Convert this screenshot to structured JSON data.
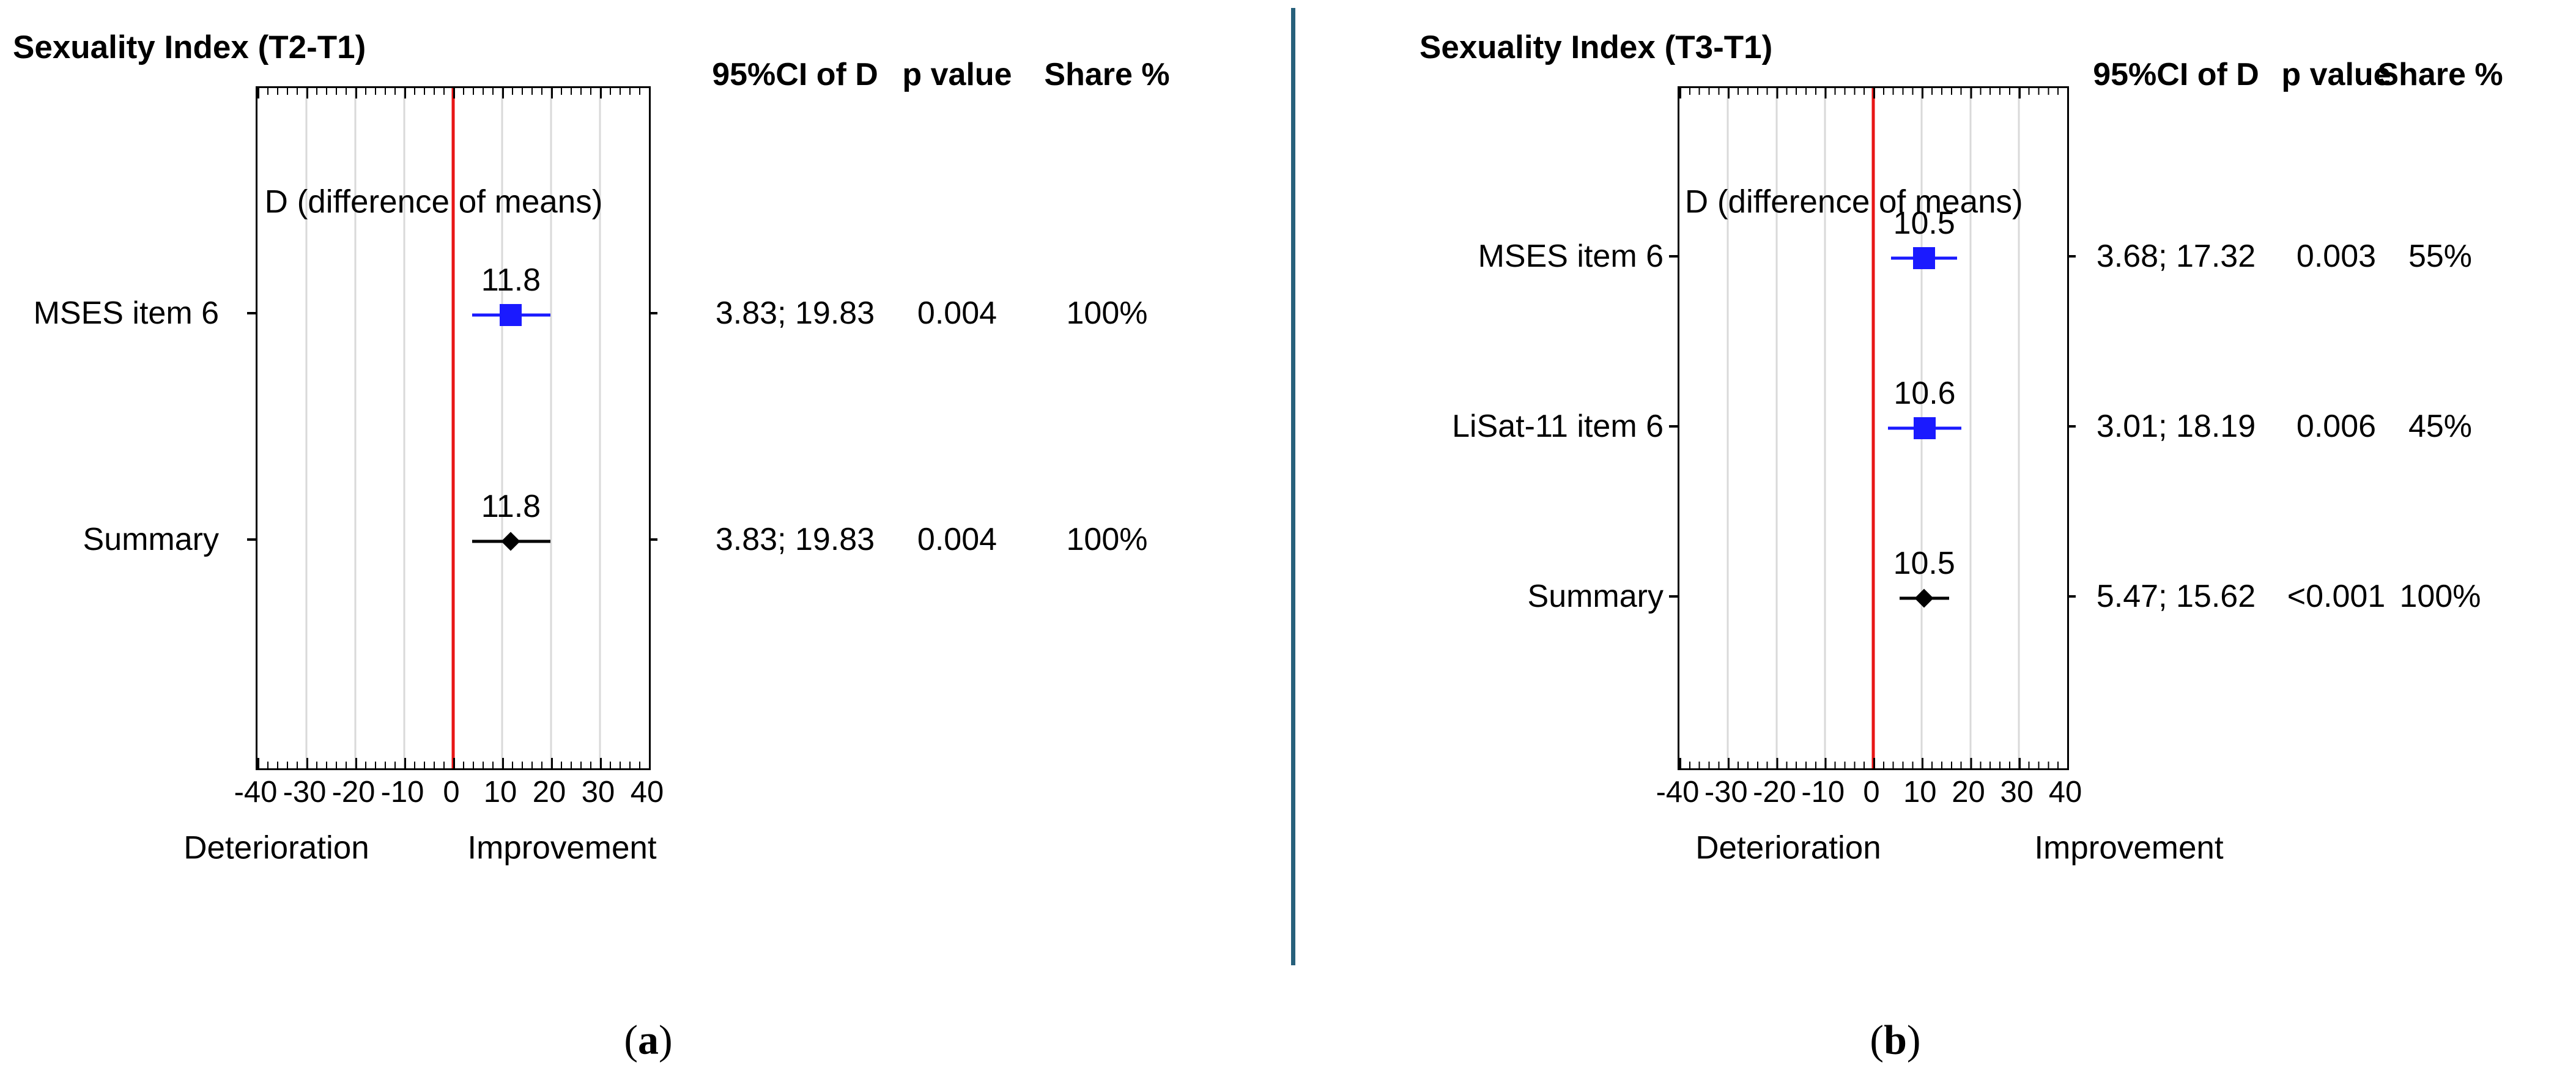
{
  "figure": {
    "divider_color": "#27607b",
    "background_color": "#ffffff",
    "caption_open": "(",
    "caption_close": ")",
    "caption_a": "a",
    "caption_b": "b"
  },
  "chart_data": [
    {
      "type": "forest",
      "panel": "a",
      "title": "Sexuality Index (T2-T1)",
      "inner_axis_label": "D (difference of means)",
      "xlim": [
        -40,
        40
      ],
      "xticks": [
        -40,
        -30,
        -20,
        -10,
        0,
        10,
        20,
        30,
        40
      ],
      "xtick_labels": [
        "-40",
        "-30",
        "-20",
        "-10",
        "0",
        "10",
        "20",
        "30",
        "40"
      ],
      "zero_line_value": 0,
      "zero_line_color": "#e81515",
      "gridline_color": "#d9d9d9",
      "grid_on": true,
      "direction_label_negative": "Deterioration",
      "direction_label_positive": "Improvement",
      "columns": [
        "95%CI of D",
        "p value",
        "Share %"
      ],
      "rows": [
        {
          "label": "MSES item 6",
          "d": 11.8,
          "d_text": "11.8",
          "ci": [
            3.83,
            19.83
          ],
          "ci_text": "3.83; 19.83",
          "p_value": "0.004",
          "share": "100%",
          "marker": "square",
          "marker_color": "#1a1aff"
        },
        {
          "label": "Summary",
          "d": 11.8,
          "d_text": "11.8",
          "ci": [
            3.83,
            19.83
          ],
          "ci_text": "3.83; 19.83",
          "p_value": "0.004",
          "share": "100%",
          "marker": "diamond",
          "marker_color": "#000000"
        }
      ]
    },
    {
      "type": "forest",
      "panel": "b",
      "title": "Sexuality Index (T3-T1)",
      "inner_axis_label": "D (difference of means)",
      "xlim": [
        -40,
        40
      ],
      "xticks": [
        -40,
        -30,
        -20,
        -10,
        0,
        10,
        20,
        30,
        40
      ],
      "xtick_labels": [
        "-40",
        "-30",
        "-20",
        "-10",
        "0",
        "10",
        "20",
        "30",
        "40"
      ],
      "zero_line_value": 0,
      "zero_line_color": "#e81515",
      "gridline_color": "#d9d9d9",
      "grid_on": true,
      "direction_label_negative": "Deterioration",
      "direction_label_positive": "Improvement",
      "columns": [
        "95%CI of D",
        "p value",
        "Share %"
      ],
      "rows": [
        {
          "label": "MSES item 6",
          "d": 10.5,
          "d_text": "10.5",
          "ci": [
            3.68,
            17.32
          ],
          "ci_text": "3.68; 17.32",
          "p_value": "0.003",
          "share": "55%",
          "marker": "square",
          "marker_color": "#1a1aff"
        },
        {
          "label": "LiSat-11 item 6",
          "d": 10.6,
          "d_text": "10.6",
          "ci": [
            3.01,
            18.19
          ],
          "ci_text": "3.01; 18.19",
          "p_value": "0.006",
          "share": "45%",
          "marker": "square",
          "marker_color": "#1a1aff"
        },
        {
          "label": "Summary",
          "d": 10.5,
          "d_text": "10.5",
          "ci": [
            5.47,
            15.62
          ],
          "ci_text": "5.47; 15.62",
          "p_value": "<0.001",
          "share": "100%",
          "marker": "diamond",
          "marker_color": "#000000"
        }
      ]
    }
  ]
}
